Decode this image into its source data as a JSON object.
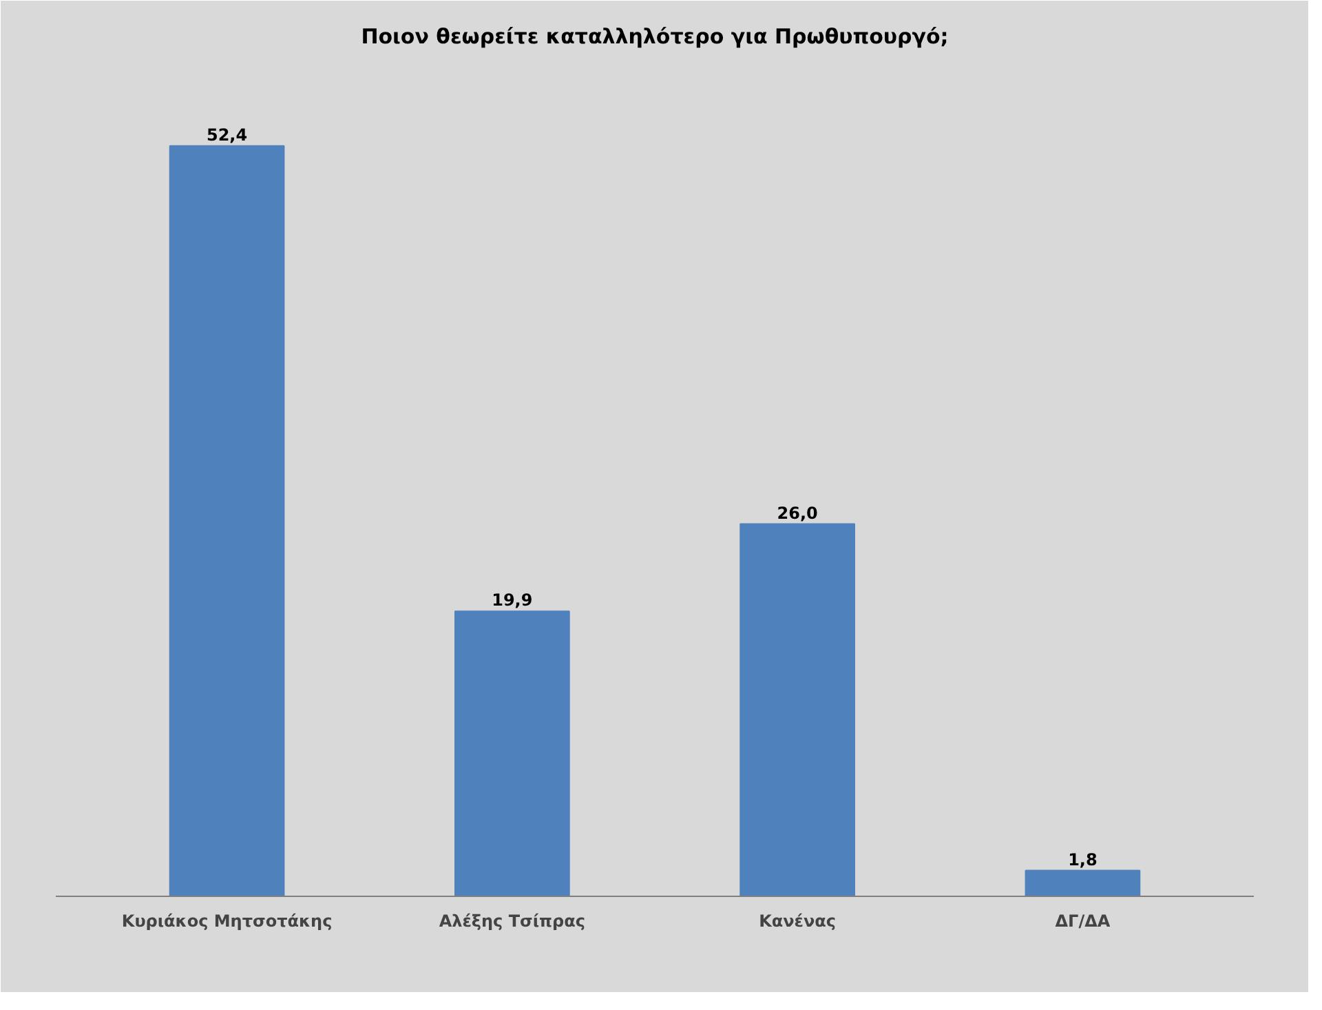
{
  "chart_data": {
    "type": "bar",
    "title": "Ποιον θεωρείτε καταλληλότερο για Πρωθυπουργό;",
    "categories": [
      "Κυριάκος Μητσοτάκης",
      "Αλέξης Τσίπρας",
      "Κανένας",
      "ΔΓ/ΔΑ"
    ],
    "values": [
      52.4,
      19.9,
      26.0,
      1.8
    ],
    "value_labels": [
      "52,4",
      "19,9",
      "26,0",
      "1,8"
    ],
    "color": "#4f81bd",
    "grid": false
  }
}
